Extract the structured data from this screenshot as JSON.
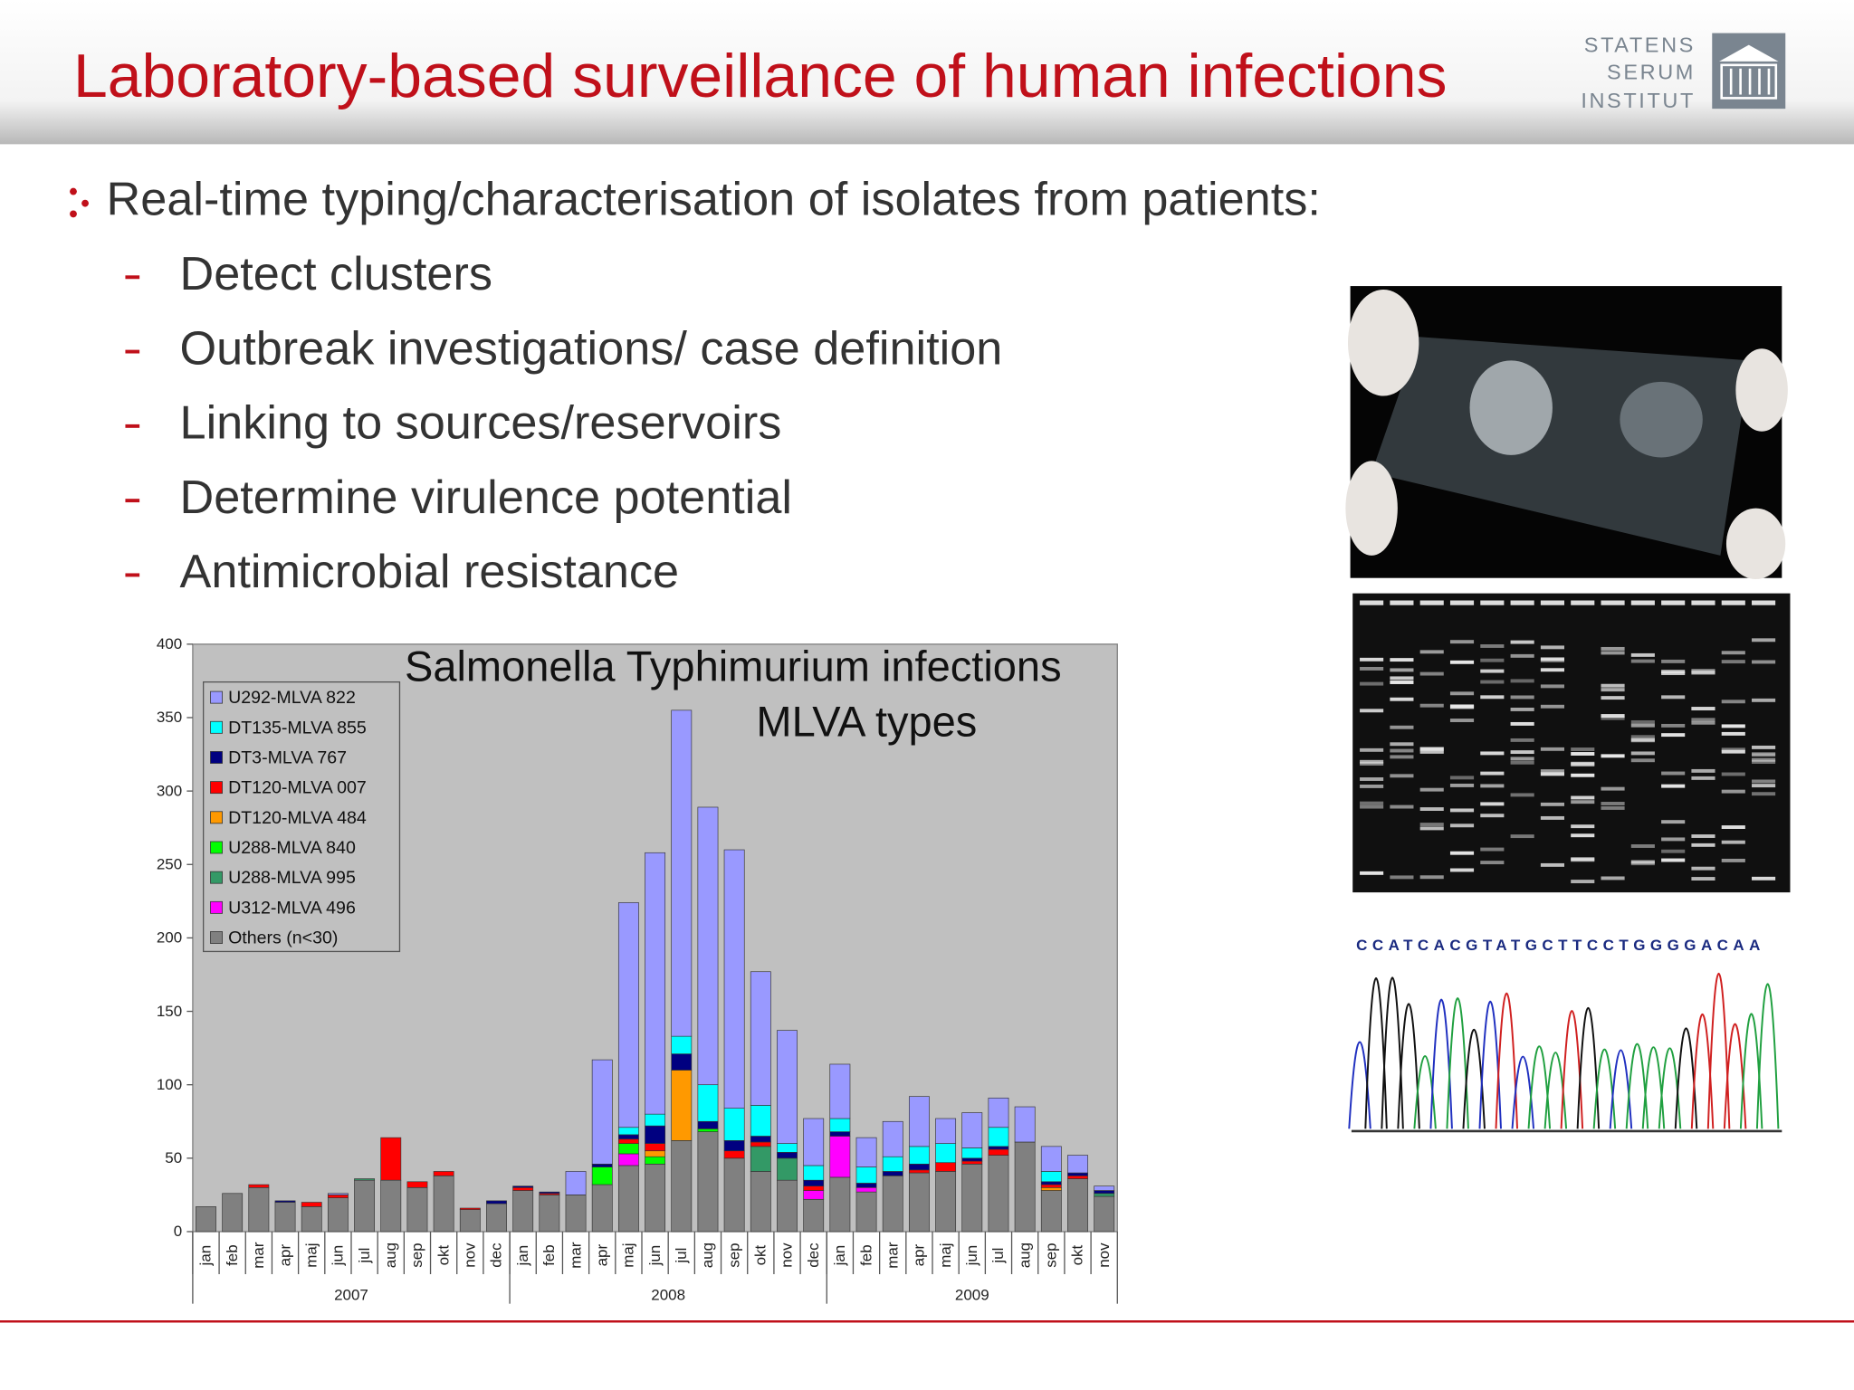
{
  "header": {
    "title": "Laboratory-based surveillance of human infections",
    "logo": [
      "STATENS",
      "SERUM",
      "INSTITUT"
    ]
  },
  "bullets": {
    "main": "Real-time typing/characterisation of isolates from patients:",
    "items": [
      "Detect clusters",
      "Outbreak investigations/ case definition",
      "Linking to sources/reservoirs",
      "Determine virulence potential",
      "Antimicrobial resistance"
    ]
  },
  "sequence_text": "CCATCACGTATGCTTCCTGGGGACAA",
  "chart_data": {
    "type": "stacked_bar",
    "title": "Salmonella Typhimurium infections",
    "subtitle": "MLVA types",
    "groups": [
      {
        "label": "2007",
        "categories": [
          "jan",
          "feb",
          "mar",
          "apr",
          "maj",
          "jun",
          "jul",
          "aug",
          "sep",
          "okt",
          "nov",
          "dec"
        ]
      },
      {
        "label": "2008",
        "categories": [
          "jan",
          "feb",
          "mar",
          "apr",
          "maj",
          "jun",
          "jul",
          "aug",
          "sep",
          "okt",
          "nov",
          "dec"
        ]
      },
      {
        "label": "2009",
        "categories": [
          "jan",
          "feb",
          "mar",
          "apr",
          "maj",
          "jun",
          "jul",
          "aug",
          "sep",
          "okt",
          "nov"
        ]
      }
    ],
    "ylim": [
      0,
      400
    ],
    "yticks": [
      0,
      50,
      100,
      150,
      200,
      250,
      300,
      350,
      400
    ],
    "background": "#c0c0c0",
    "series": [
      {
        "name": "U292-MLVA 822",
        "color": "#9999ff",
        "values": [
          0,
          0,
          0,
          0,
          0,
          1,
          0,
          0,
          0,
          0,
          0,
          0,
          0,
          0,
          16,
          71,
          153,
          178,
          222,
          189,
          176,
          91,
          77,
          32,
          37,
          20,
          24,
          34,
          17,
          24,
          20,
          24,
          17,
          12,
          3
        ]
      },
      {
        "name": "DT135-MLVA 855",
        "color": "#00ffff",
        "values": [
          0,
          0,
          0,
          0,
          0,
          0,
          0,
          0,
          0,
          0,
          0,
          0,
          0,
          0,
          0,
          0,
          5,
          8,
          12,
          25,
          22,
          21,
          6,
          10,
          9,
          11,
          10,
          12,
          13,
          7,
          13,
          0,
          7,
          0,
          0
        ]
      },
      {
        "name": "DT3-MLVA 767",
        "color": "#000080",
        "values": [
          0,
          0,
          0,
          1,
          0,
          0,
          0,
          0,
          0,
          0,
          0,
          2,
          1,
          1,
          0,
          2,
          3,
          12,
          11,
          5,
          7,
          4,
          4,
          4,
          3,
          3,
          3,
          4,
          0,
          2,
          2,
          0,
          2,
          2,
          2
        ]
      },
      {
        "name": "DT120-MLVA 007",
        "color": "#ff0000",
        "values": [
          0,
          0,
          2,
          0,
          3,
          2,
          0,
          29,
          4,
          3,
          1,
          0,
          2,
          1,
          0,
          0,
          3,
          5,
          0,
          0,
          5,
          3,
          0,
          3,
          0,
          0,
          0,
          2,
          6,
          2,
          4,
          0,
          2,
          2,
          0
        ]
      },
      {
        "name": "DT120-MLVA 484",
        "color": "#ff9900",
        "values": [
          0,
          0,
          0,
          0,
          0,
          0,
          0,
          0,
          0,
          0,
          0,
          0,
          0,
          0,
          0,
          0,
          0,
          4,
          48,
          0,
          0,
          0,
          0,
          0,
          0,
          0,
          0,
          0,
          0,
          0,
          0,
          0,
          2,
          0,
          0
        ]
      },
      {
        "name": "U288-MLVA 840",
        "color": "#00ff00",
        "values": [
          0,
          0,
          0,
          0,
          0,
          0,
          0,
          0,
          0,
          0,
          0,
          0,
          0,
          0,
          0,
          12,
          7,
          5,
          0,
          2,
          0,
          0,
          0,
          0,
          0,
          0,
          0,
          0,
          0,
          0,
          0,
          0,
          0,
          0,
          0
        ]
      },
      {
        "name": "U288-MLVA 995",
        "color": "#339966",
        "values": [
          0,
          0,
          0,
          0,
          0,
          0,
          1,
          0,
          0,
          0,
          0,
          0,
          0,
          0,
          0,
          0,
          0,
          0,
          0,
          0,
          0,
          17,
          15,
          0,
          0,
          0,
          0,
          0,
          0,
          0,
          0,
          0,
          0,
          0,
          2
        ]
      },
      {
        "name": "U312-MLVA 496",
        "color": "#ff00ff",
        "values": [
          0,
          0,
          0,
          0,
          0,
          0,
          0,
          0,
          0,
          0,
          0,
          0,
          0,
          0,
          0,
          0,
          8,
          0,
          0,
          0,
          0,
          0,
          0,
          6,
          28,
          3,
          0,
          0,
          0,
          0,
          0,
          0,
          0,
          0,
          0
        ]
      },
      {
        "name": "Others (n<30)",
        "color": "#808080",
        "values": [
          17,
          26,
          30,
          20,
          17,
          23,
          35,
          35,
          30,
          38,
          15,
          19,
          28,
          25,
          25,
          32,
          45,
          46,
          62,
          68,
          50,
          41,
          35,
          22,
          37,
          27,
          38,
          40,
          41,
          46,
          52,
          61,
          28,
          36,
          24
        ]
      }
    ]
  }
}
